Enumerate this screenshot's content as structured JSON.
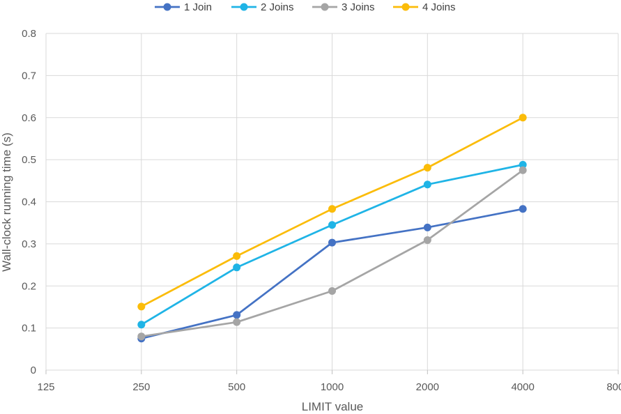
{
  "chart_data": {
    "type": "line",
    "title": "",
    "xlabel": "LIMIT value",
    "ylabel": "Wall-clock running time (s)",
    "x_scale": "log2",
    "x_ticks": [
      "125",
      "250",
      "500",
      "1000",
      "2000",
      "4000",
      "8000"
    ],
    "x_tick_values": [
      125,
      250,
      500,
      1000,
      2000,
      4000,
      8000
    ],
    "ylim": [
      0,
      0.8
    ],
    "y_ticks": [
      "0",
      "0.1",
      "0.2",
      "0.3",
      "0.4",
      "0.5",
      "0.6",
      "0.7",
      "0.8"
    ],
    "y_tick_values": [
      0,
      0.1,
      0.2,
      0.3,
      0.4,
      0.5,
      0.6,
      0.7,
      0.8
    ],
    "grid": true,
    "legend_position": "top",
    "x": [
      250,
      500,
      1000,
      2000,
      4000
    ],
    "series": [
      {
        "name": "1 Join",
        "color": "#4472c4",
        "values": [
          0.075,
          0.131,
          0.303,
          0.339,
          0.383
        ]
      },
      {
        "name": "2 Joins",
        "color": "#1fb4e6",
        "values": [
          0.108,
          0.244,
          0.345,
          0.441,
          0.488
        ]
      },
      {
        "name": "3 Joins",
        "color": "#a5a5a5",
        "values": [
          0.08,
          0.114,
          0.188,
          0.309,
          0.475
        ]
      },
      {
        "name": "4 Joins",
        "color": "#fbbc09",
        "values": [
          0.151,
          0.271,
          0.383,
          0.481,
          0.6
        ]
      }
    ]
  }
}
